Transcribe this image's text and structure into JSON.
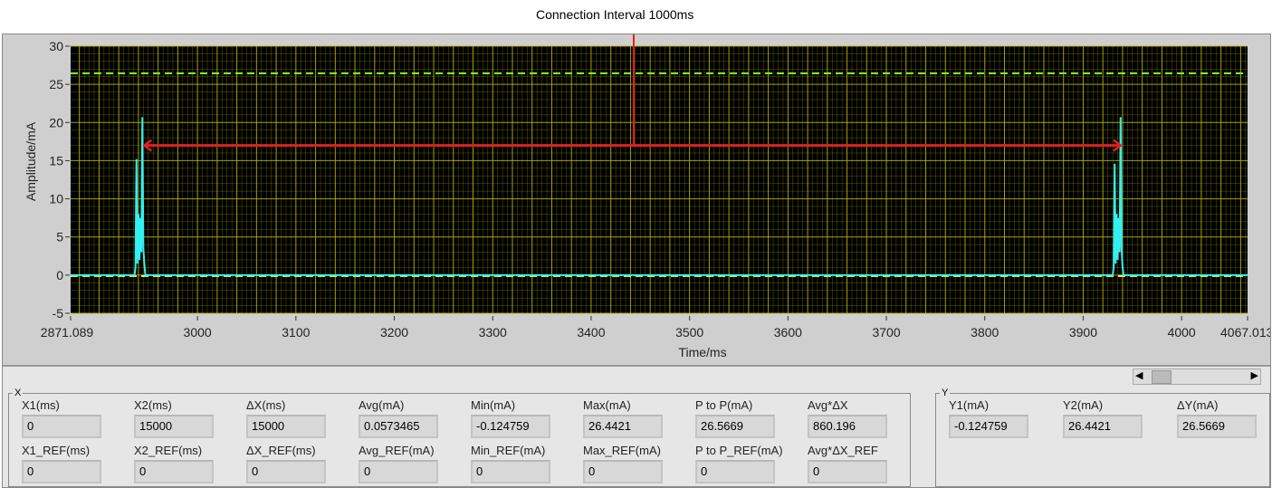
{
  "annotation": "Connection Interval 1000ms",
  "chart_data": {
    "type": "line",
    "xlabel": "Time/ms",
    "ylabel": "Amplitude/mA",
    "xlim": [
      2871.089,
      4067.013
    ],
    "ylim": [
      -5,
      30
    ],
    "xticks": [
      "2871.089",
      "3000",
      "3100",
      "3200",
      "3300",
      "3400",
      "3500",
      "3600",
      "3700",
      "3800",
      "3900",
      "4000",
      "4067.013"
    ],
    "yticks": [
      "-5",
      "0",
      "5",
      "10",
      "15",
      "20",
      "25",
      "30"
    ],
    "grid": true,
    "background": "#000000",
    "grid_color": "#b3b300",
    "trace_color": "#33f0f0",
    "cursor_lines": [
      {
        "y": 26.4421,
        "color": "#80ff20",
        "style": "dashed"
      },
      {
        "y": -0.124759,
        "color": "#ffff40",
        "style": "dashed"
      }
    ],
    "series": [
      {
        "x": [
          2871.089,
          2936,
          2937,
          2938,
          2939,
          2940,
          2941,
          2942,
          2943,
          2944,
          2945,
          2946,
          2947,
          2950,
          3930,
          3931,
          3932,
          3933,
          3934,
          3935,
          3936,
          3937,
          3938,
          3939,
          3940,
          3941,
          3944,
          4067.013
        ],
        "y": [
          0,
          0,
          1,
          15.2,
          1.5,
          8,
          2,
          7.5,
          3,
          20.7,
          3.5,
          1.5,
          0,
          0,
          0,
          1,
          14.6,
          1.5,
          8,
          2,
          7.5,
          3,
          20.7,
          3.5,
          1,
          0,
          0,
          0
        ]
      }
    ],
    "annotation_arrow": {
      "from": 2944,
      "to": 3940,
      "y": 17,
      "color": "#e02020"
    }
  },
  "cursors_x": {
    "legend": "X",
    "row1": [
      {
        "label": "X1(ms)",
        "value": "0"
      },
      {
        "label": "X2(ms)",
        "value": "15000"
      },
      {
        "label": "ΔX(ms)",
        "value": "15000"
      },
      {
        "label": "Avg(mA)",
        "value": "0.0573465"
      },
      {
        "label": "Min(mA)",
        "value": "-0.124759"
      },
      {
        "label": "Max(mA)",
        "value": "26.4421"
      },
      {
        "label": "P to P(mA)",
        "value": "26.5669"
      },
      {
        "label": "Avg*ΔX",
        "value": "860.196"
      }
    ],
    "row2": [
      {
        "label": "X1_REF(ms)",
        "value": "0"
      },
      {
        "label": "X2_REF(ms)",
        "value": "0"
      },
      {
        "label": "ΔX_REF(ms)",
        "value": "0"
      },
      {
        "label": "Avg_REF(mA)",
        "value": "0"
      },
      {
        "label": "Min_REF(mA)",
        "value": "0"
      },
      {
        "label": "Max_REF(mA)",
        "value": "0"
      },
      {
        "label": "P to P_REF(mA)",
        "value": "0"
      },
      {
        "label": "Avg*ΔX_REF",
        "value": "0"
      }
    ]
  },
  "cursors_y": {
    "legend": "Y",
    "row1": [
      {
        "label": "Y1(mA)",
        "value": "-0.124759"
      },
      {
        "label": "Y2(mA)",
        "value": "26.4421"
      },
      {
        "label": "ΔY(mA)",
        "value": "26.5669"
      }
    ]
  }
}
